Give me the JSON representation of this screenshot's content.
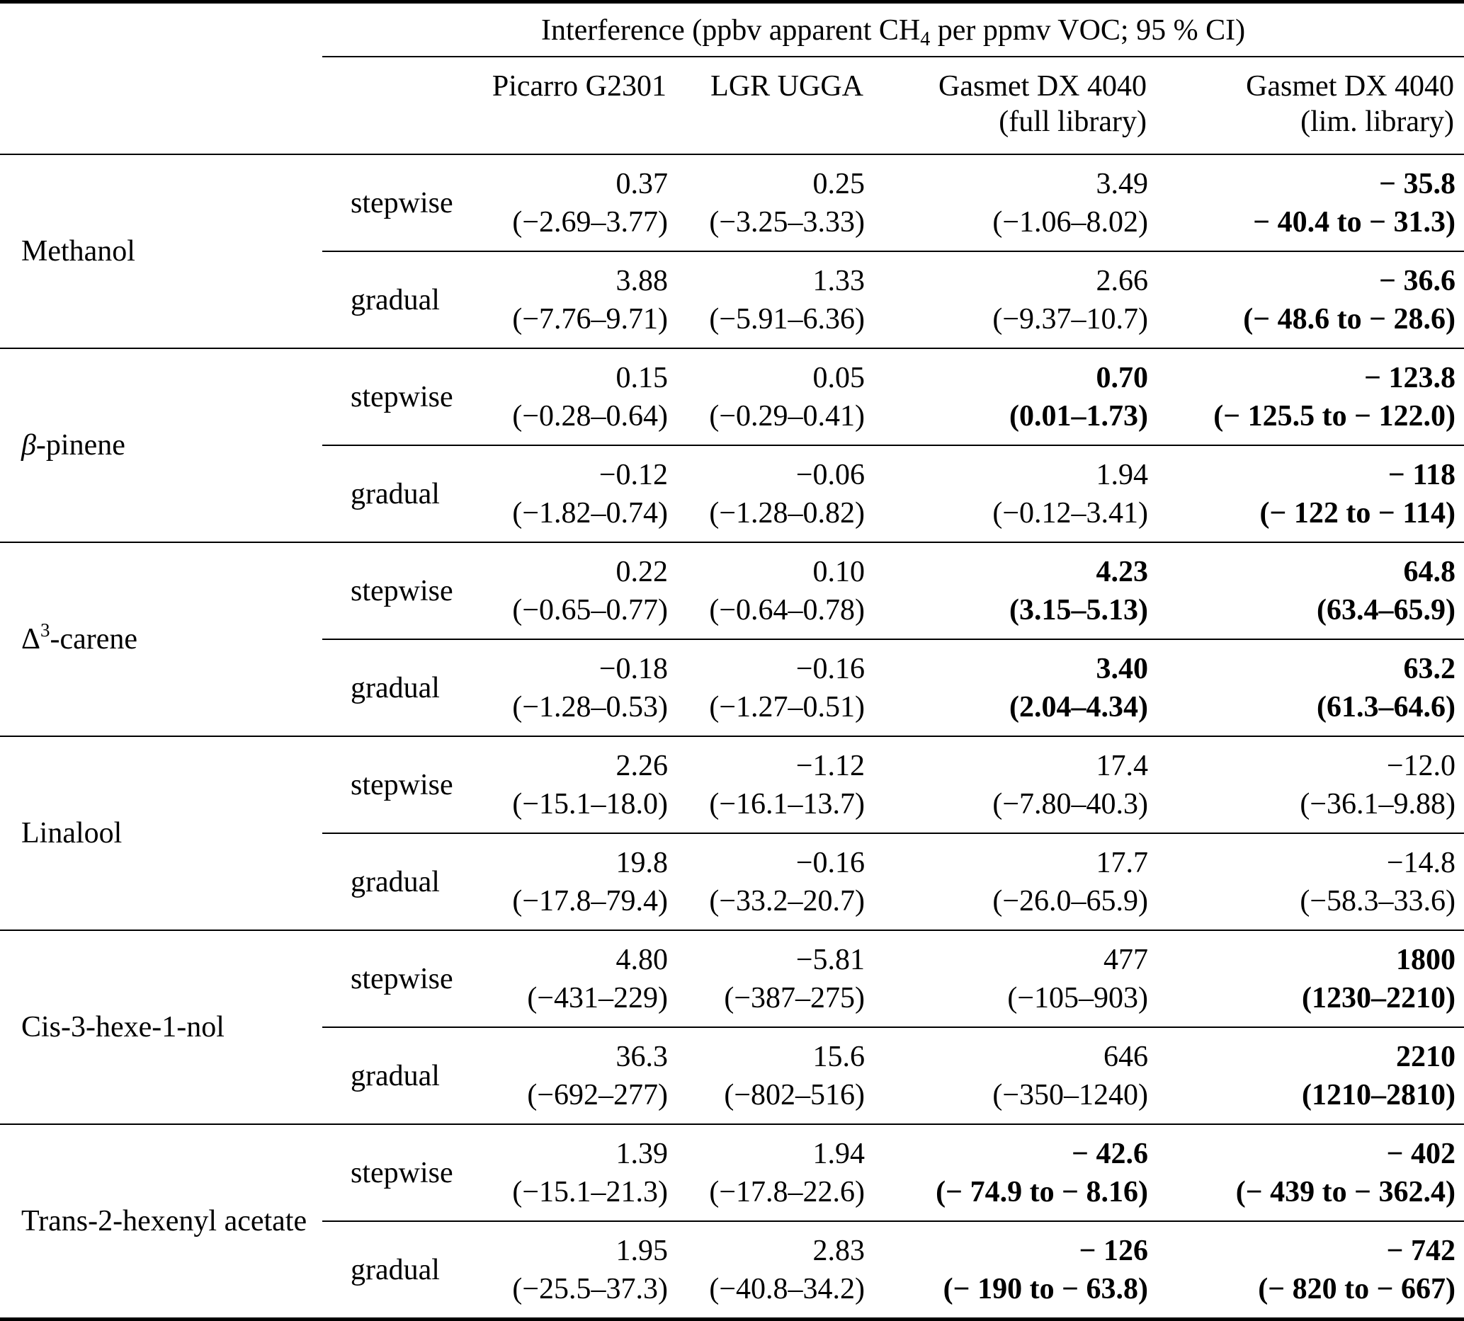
{
  "table": {
    "title": {
      "pre": "Interference (ppbv apparent CH",
      "sub": "4",
      "post": " per ppmv VOC; 95 % CI)"
    },
    "columns": [
      {
        "key": "picarro-g2301",
        "line1": "Picarro G2301",
        "line2": ""
      },
      {
        "key": "lgr-ugga",
        "line1": "LGR UGGA",
        "line2": ""
      },
      {
        "key": "gasmet-dx4040-full",
        "line1": "Gasmet DX 4040",
        "line2": "(full library)"
      },
      {
        "key": "gasmet-dx4040-lim",
        "line1": "Gasmet DX 4040",
        "line2": "(lim. library)"
      }
    ],
    "groups": [
      {
        "compound": {
          "base": "Methanol",
          "sup": "",
          "rest": "",
          "italic": false
        },
        "rows": [
          {
            "mode": "stepwise",
            "cells": [
              {
                "value": "0.37",
                "ci": "(−2.69–3.77)",
                "bold": false
              },
              {
                "value": "0.25",
                "ci": "(−3.25–3.33)",
                "bold": false
              },
              {
                "value": "3.49",
                "ci": "(−1.06–8.02)",
                "bold": false
              },
              {
                "value": "− 35.8",
                "ci": "− 40.4 to − 31.3)",
                "bold": true
              }
            ]
          },
          {
            "mode": "gradual",
            "cells": [
              {
                "value": "3.88",
                "ci": "(−7.76–9.71)",
                "bold": false
              },
              {
                "value": "1.33",
                "ci": "(−5.91–6.36)",
                "bold": false
              },
              {
                "value": "2.66",
                "ci": "(−9.37–10.7)",
                "bold": false
              },
              {
                "value": "− 36.6",
                "ci": "(− 48.6 to − 28.6)",
                "bold": true
              }
            ]
          }
        ]
      },
      {
        "compound": {
          "base": "β",
          "sup": "",
          "rest": "-pinene",
          "italic": true
        },
        "rows": [
          {
            "mode": "stepwise",
            "cells": [
              {
                "value": "0.15",
                "ci": "(−0.28–0.64)",
                "bold": false
              },
              {
                "value": "0.05",
                "ci": "(−0.29–0.41)",
                "bold": false
              },
              {
                "value": "0.70",
                "ci": "(0.01–1.73)",
                "bold": true
              },
              {
                "value": "− 123.8",
                "ci": "(− 125.5 to − 122.0)",
                "bold": true
              }
            ]
          },
          {
            "mode": "gradual",
            "cells": [
              {
                "value": "−0.12",
                "ci": "(−1.82–0.74)",
                "bold": false
              },
              {
                "value": "−0.06",
                "ci": "(−1.28–0.82)",
                "bold": false
              },
              {
                "value": "1.94",
                "ci": "(−0.12–3.41)",
                "bold": false
              },
              {
                "value": "− 118",
                "ci": "(− 122 to − 114)",
                "bold": true
              }
            ]
          }
        ]
      },
      {
        "compound": {
          "base": "Δ",
          "sup": "3",
          "rest": "-carene",
          "italic": false
        },
        "rows": [
          {
            "mode": "stepwise",
            "cells": [
              {
                "value": "0.22",
                "ci": "(−0.65–0.77)",
                "bold": false
              },
              {
                "value": "0.10",
                "ci": "(−0.64–0.78)",
                "bold": false
              },
              {
                "value": "4.23",
                "ci": "(3.15–5.13)",
                "bold": true
              },
              {
                "value": "64.8",
                "ci": "(63.4–65.9)",
                "bold": true
              }
            ]
          },
          {
            "mode": "gradual",
            "cells": [
              {
                "value": "−0.18",
                "ci": "(−1.28–0.53)",
                "bold": false
              },
              {
                "value": "−0.16",
                "ci": "(−1.27–0.51)",
                "bold": false
              },
              {
                "value": "3.40",
                "ci": "(2.04–4.34)",
                "bold": true
              },
              {
                "value": "63.2",
                "ci": "(61.3–64.6)",
                "bold": true
              }
            ]
          }
        ]
      },
      {
        "compound": {
          "base": "Linalool",
          "sup": "",
          "rest": "",
          "italic": false
        },
        "rows": [
          {
            "mode": "stepwise",
            "cells": [
              {
                "value": "2.26",
                "ci": "(−15.1–18.0)",
                "bold": false
              },
              {
                "value": "−1.12",
                "ci": "(−16.1–13.7)",
                "bold": false
              },
              {
                "value": "17.4",
                "ci": "(−7.80–40.3)",
                "bold": false
              },
              {
                "value": "−12.0",
                "ci": "(−36.1–9.88)",
                "bold": false
              }
            ]
          },
          {
            "mode": "gradual",
            "cells": [
              {
                "value": "19.8",
                "ci": "(−17.8–79.4)",
                "bold": false
              },
              {
                "value": "−0.16",
                "ci": "(−33.2–20.7)",
                "bold": false
              },
              {
                "value": "17.7",
                "ci": "(−26.0–65.9)",
                "bold": false
              },
              {
                "value": "−14.8",
                "ci": "(−58.3–33.6)",
                "bold": false
              }
            ]
          }
        ]
      },
      {
        "compound": {
          "base": "Cis-3-hexe-1-nol",
          "sup": "",
          "rest": "",
          "italic": false
        },
        "rows": [
          {
            "mode": "stepwise",
            "cells": [
              {
                "value": "4.80",
                "ci": "(−431–229)",
                "bold": false
              },
              {
                "value": "−5.81",
                "ci": "(−387–275)",
                "bold": false
              },
              {
                "value": "477",
                "ci": "(−105–903)",
                "bold": false
              },
              {
                "value": "1800",
                "ci": "(1230–2210)",
                "bold": true
              }
            ]
          },
          {
            "mode": "gradual",
            "cells": [
              {
                "value": "36.3",
                "ci": "(−692–277)",
                "bold": false
              },
              {
                "value": "15.6",
                "ci": "(−802–516)",
                "bold": false
              },
              {
                "value": "646",
                "ci": "(−350–1240)",
                "bold": false
              },
              {
                "value": "2210",
                "ci": "(1210–2810)",
                "bold": true
              }
            ]
          }
        ]
      },
      {
        "compound": {
          "base": "Trans-2-hexenyl acetate",
          "sup": "",
          "rest": "",
          "italic": false
        },
        "rows": [
          {
            "mode": "stepwise",
            "cells": [
              {
                "value": "1.39",
                "ci": "(−15.1–21.3)",
                "bold": false
              },
              {
                "value": "1.94",
                "ci": "(−17.8–22.6)",
                "bold": false
              },
              {
                "value": "− 42.6",
                "ci": "(− 74.9 to − 8.16)",
                "bold": true
              },
              {
                "value": "− 402",
                "ci": "(− 439 to − 362.4)",
                "bold": true
              }
            ]
          },
          {
            "mode": "gradual",
            "cells": [
              {
                "value": "1.95",
                "ci": "(−25.5–37.3)",
                "bold": false
              },
              {
                "value": "2.83",
                "ci": "(−40.8–34.2)",
                "bold": false
              },
              {
                "value": "− 126",
                "ci": "(− 190 to − 63.8)",
                "bold": true
              },
              {
                "value": "− 742",
                "ci": "(− 820 to − 667)",
                "bold": true
              }
            ]
          }
        ]
      }
    ]
  }
}
